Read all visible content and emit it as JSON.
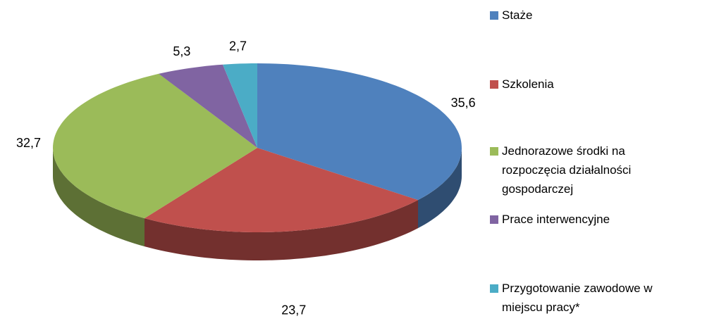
{
  "chart_data": {
    "type": "pie3d",
    "categories": [
      "Staże",
      "Szkolenia",
      "Jednorazowe środki na rozpoczęcia działalności gospodarczej",
      "Prace interwencyjne",
      "Przygotowanie zawodowe w miejscu pracy*"
    ],
    "values": [
      35.6,
      23.7,
      32.7,
      5.3,
      2.7
    ],
    "value_labels": [
      "35,6",
      "23,7",
      "32,7",
      "5,3",
      "2,7"
    ],
    "colors": [
      "#4f81bd",
      "#c0504d",
      "#9bbb59",
      "#8064a2",
      "#4bacc6"
    ],
    "legend": "right"
  }
}
